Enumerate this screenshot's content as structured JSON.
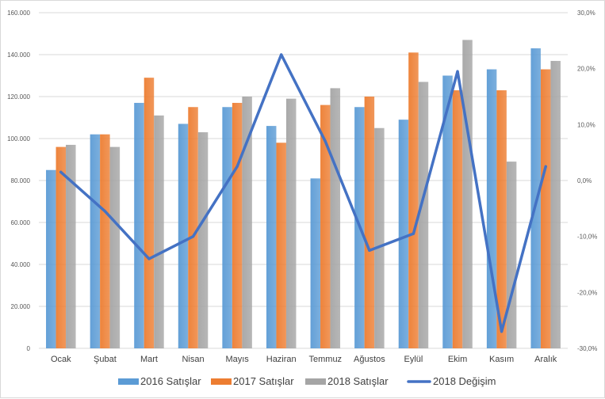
{
  "chart_data": {
    "type": "bar",
    "title": "",
    "categories": [
      "Ocak",
      "Şubat",
      "Mart",
      "Nisan",
      "Mayıs",
      "Haziran",
      "Temmuz",
      "Ağustos",
      "Eylül",
      "Ekim",
      "Kasım",
      "Aralık"
    ],
    "series": [
      {
        "name": "2016 Satışlar",
        "kind": "bar",
        "axis": "left",
        "color": "#5b9bd5",
        "values": [
          85000,
          102000,
          117000,
          107000,
          115000,
          106000,
          81000,
          115000,
          109000,
          130000,
          133000,
          143000
        ]
      },
      {
        "name": "2017 Satışlar",
        "kind": "bar",
        "axis": "left",
        "color": "#ed7d31",
        "values": [
          96000,
          102000,
          129000,
          115000,
          117000,
          98000,
          116000,
          120000,
          141000,
          123000,
          123000,
          133000
        ]
      },
      {
        "name": "2018 Satışlar",
        "kind": "bar",
        "axis": "left",
        "color": "#a5a5a5",
        "values": [
          97000,
          96000,
          111000,
          103000,
          120000,
          119000,
          124000,
          105000,
          127000,
          147000,
          89000,
          137000
        ]
      },
      {
        "name": "2018 Değişim",
        "kind": "line",
        "axis": "right",
        "color": "#4472c4",
        "values": [
          1.5,
          -5.5,
          -14.0,
          -10.0,
          2.5,
          22.5,
          7.0,
          -12.5,
          -9.5,
          19.5,
          -27.0,
          2.5
        ]
      }
    ],
    "y_left": {
      "min": 0,
      "max": 160000,
      "step": 20000,
      "tick_labels": [
        "0",
        "20.000",
        "40.000",
        "60.000",
        "80.000",
        "100.000",
        "120.000",
        "140.000",
        "160.000"
      ]
    },
    "y_right": {
      "min": -30,
      "max": 30,
      "step": 10,
      "tick_labels": [
        "-30,0%",
        "-20,0%",
        "-10,0%",
        "0,0%",
        "10,0%",
        "20,0%",
        "30,0%"
      ]
    },
    "xlabel": "",
    "ylabel": "",
    "grid": true,
    "legend": "bottom"
  }
}
